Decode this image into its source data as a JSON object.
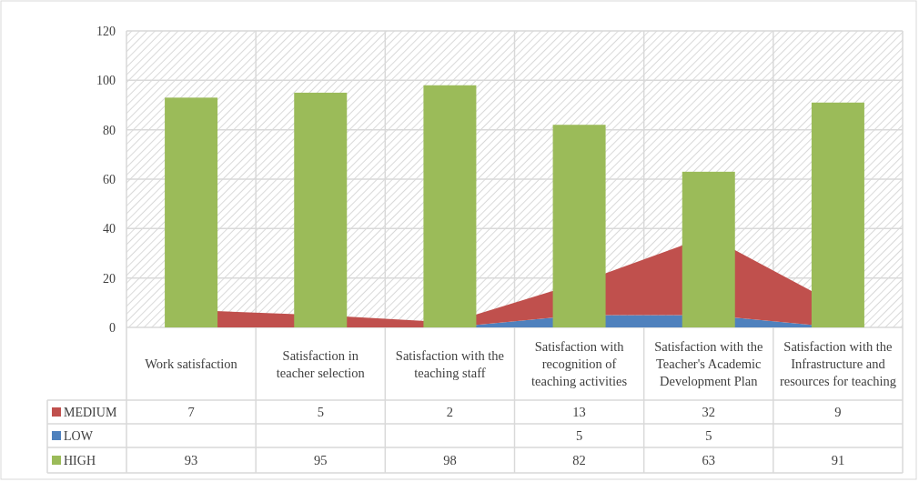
{
  "chart_data": {
    "type": "bar",
    "categories": [
      "Work satisfaction",
      "Satisfaction in teacher selection",
      "Satisfaction with the teaching staff",
      "Satisfaction with recognition of teaching activities",
      "Satisfaction with the Teacher's Academic Development Plan",
      "Satisfaction with the Infrastructure and resources for teaching"
    ],
    "series": [
      {
        "name": "LOW",
        "type": "area",
        "color": "#4f81bd",
        "values": [
          0,
          0,
          0,
          5,
          5,
          0
        ],
        "value_labels": [
          null,
          null,
          null,
          "5",
          "5",
          null
        ]
      },
      {
        "name": "MEDIUM",
        "type": "area",
        "color": "#c0504d",
        "values": [
          7,
          5,
          2,
          13,
          32,
          9
        ]
      },
      {
        "name": "HIGH",
        "color": "#9bbb59",
        "values": [
          93,
          95,
          98,
          82,
          63,
          91
        ]
      }
    ],
    "stacked": true,
    "ylim": [
      0,
      120
    ],
    "yticks": [
      0,
      20,
      40,
      60,
      80,
      100,
      120
    ],
    "grid": true,
    "legend": "bottom",
    "data_labels": true
  }
}
